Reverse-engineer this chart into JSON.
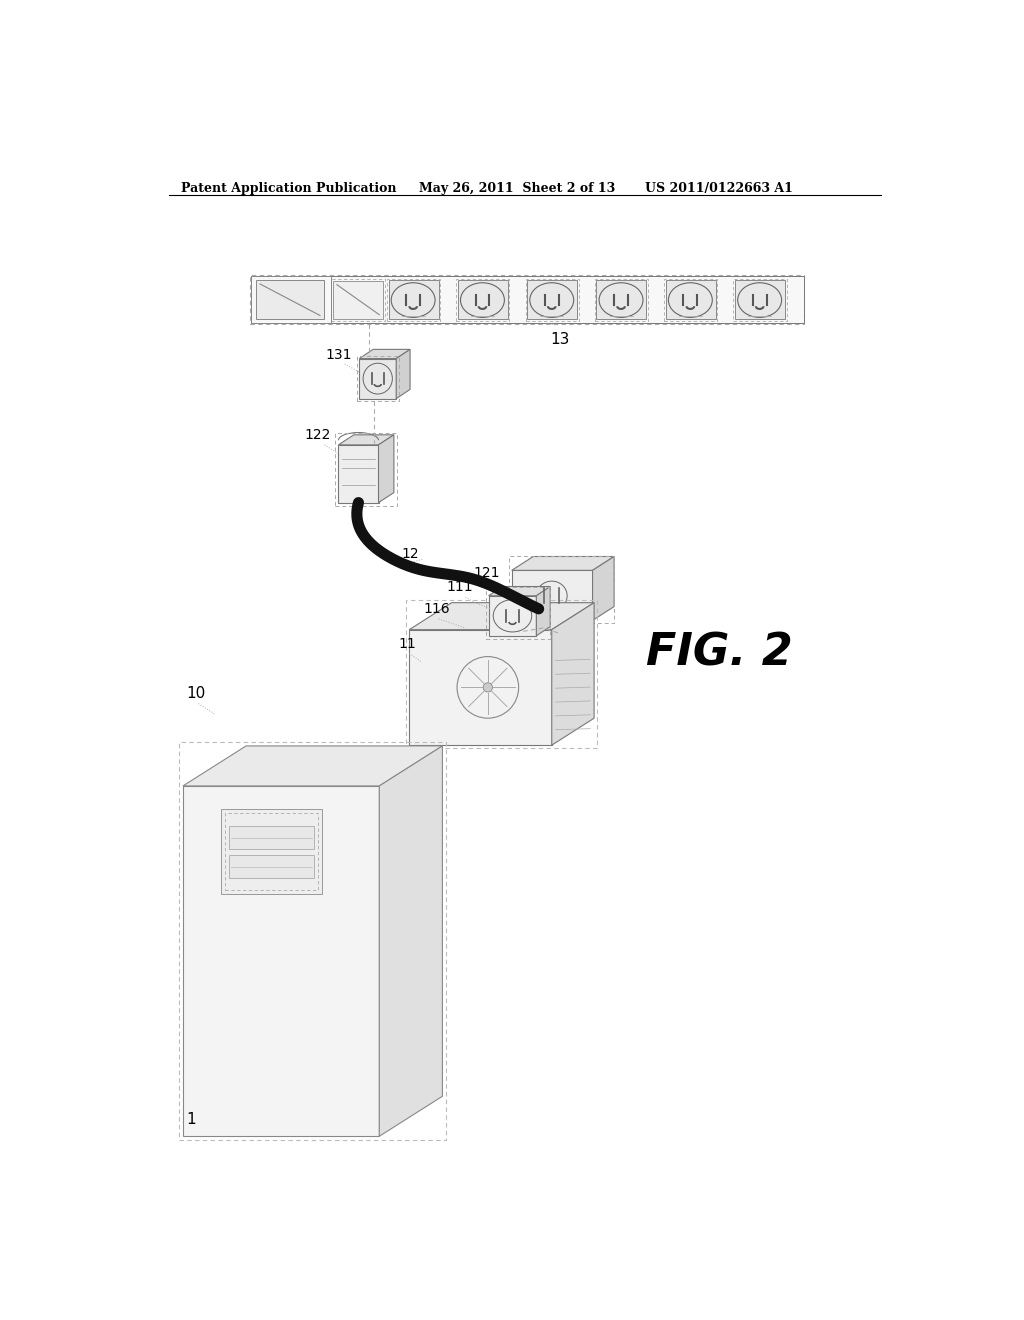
{
  "background_color": "#ffffff",
  "header_left": "Patent Application Publication",
  "header_mid": "May 26, 2011  Sheet 2 of 13",
  "header_right": "US 2011/0122663 A1",
  "fig_label": "FIG. 2",
  "label_1": "1",
  "label_10": "10",
  "label_11": "11",
  "label_111": "111",
  "label_116": "116",
  "label_12": "12",
  "label_121": "121",
  "label_122": "122",
  "label_13": "13",
  "label_131": "131",
  "line_color": "#555555",
  "dashed_color": "#aaaaaa",
  "face_light": "#f0f0f0",
  "face_mid": "#e0e0e0",
  "face_dark": "#cccccc"
}
